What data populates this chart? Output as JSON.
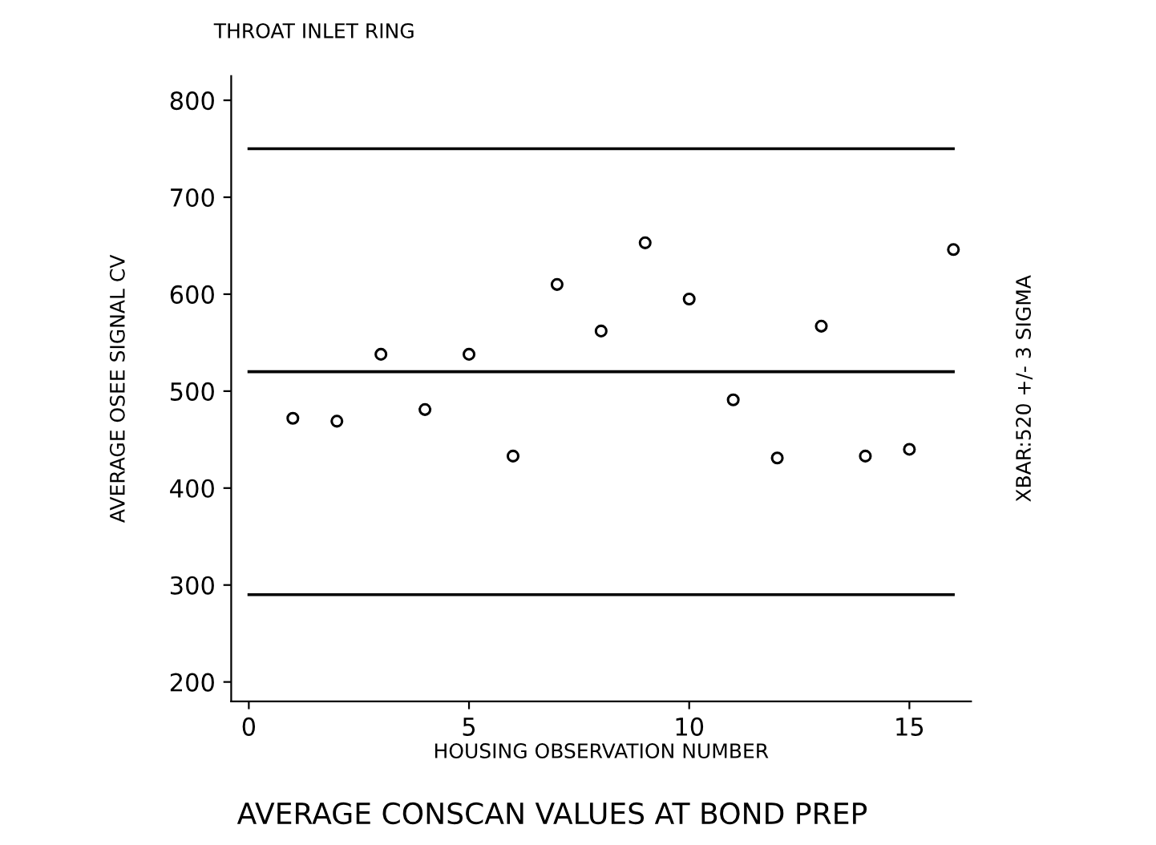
{
  "chart_data": {
    "type": "scatter",
    "title": "THROAT INLET RING",
    "xlabel": "HOUSING OBSERVATION NUMBER",
    "ylabel": "AVERAGE OSEE SIGNAL CV",
    "y2label": "XBAR:520 +/- 3 SIGMA",
    "annotations": [
      "AVERAGE CONSCAN VALUES AT BOND PREP"
    ],
    "x": [
      1,
      2,
      3,
      4,
      5,
      6,
      7,
      8,
      9,
      10,
      11,
      12,
      13,
      14,
      15,
      16
    ],
    "series": [
      {
        "color": "#000000",
        "values": [
          472,
          469,
          538,
          481,
          538,
          433,
          610,
          562,
          653,
          595,
          491,
          431,
          567,
          433,
          440,
          646
        ]
      }
    ],
    "marker": "circle",
    "xlim": [
      -0.4,
      16.4
    ],
    "xticks": [
      0,
      5,
      10,
      15
    ],
    "ylim": [
      180,
      825
    ],
    "yticks": [
      200,
      300,
      400,
      500,
      600,
      700,
      800
    ],
    "ref_lines": [
      {
        "axis": "y",
        "value": 750,
        "label": null,
        "color": "#000000"
      },
      {
        "axis": "y",
        "value": 520,
        "label": null,
        "color": "#000000"
      },
      {
        "axis": "y",
        "value": 290,
        "label": null,
        "color": "#000000"
      }
    ],
    "grid": false,
    "legend": false
  }
}
